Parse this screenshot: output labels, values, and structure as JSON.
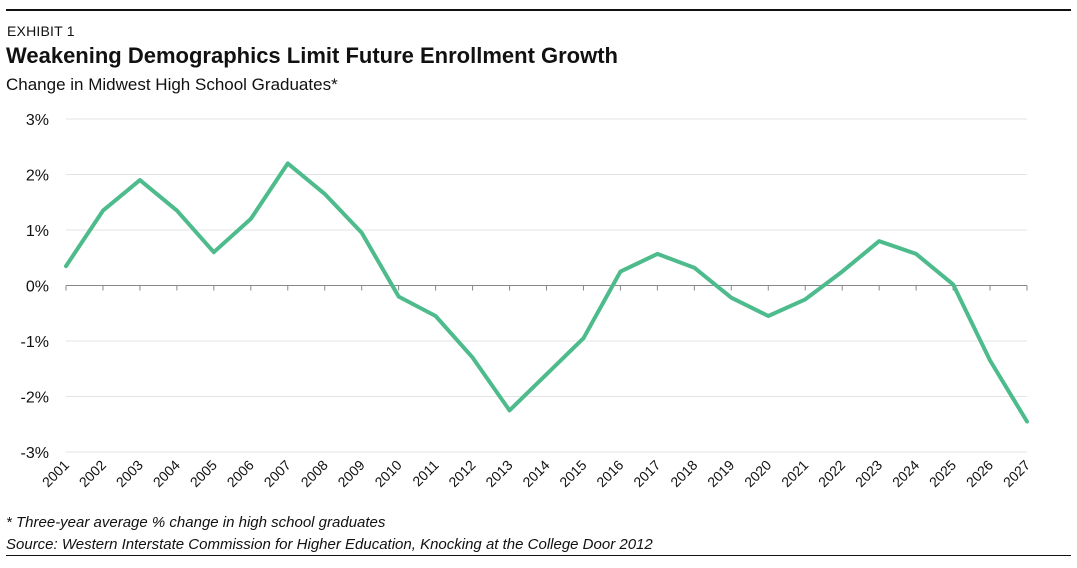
{
  "header": {
    "exhibit": "EXHIBIT 1",
    "title": "Weakening Demographics Limit Future Enrollment Growth",
    "subtitle": "Change in Midwest High School Graduates*"
  },
  "footer": {
    "footnote": "* Three-year average % change in high school graduates",
    "source": "Source: Western Interstate Commission for Higher Education, Knocking at the College Door 2012"
  },
  "colors": {
    "line": "#4dbb8c",
    "grid": "#e3e3e3",
    "axis": "#888888"
  },
  "chart_data": {
    "type": "line",
    "title": "Weakening Demographics Limit Future Enrollment Growth",
    "subtitle": "Change in Midwest High School Graduates*",
    "xlabel": "",
    "ylabel": "",
    "ylim": [
      -3,
      3
    ],
    "yticks": [
      3,
      2,
      1,
      0,
      -1,
      -2,
      -3
    ],
    "ytick_labels": [
      "3%",
      "2%",
      "1%",
      "0%",
      "-1%",
      "-2%",
      "-3%"
    ],
    "grid": "horizontal",
    "x": [
      "2001",
      "2002",
      "2003",
      "2004",
      "2005",
      "2006",
      "2007",
      "2008",
      "2009",
      "2010",
      "2011",
      "2012",
      "2013",
      "2014",
      "2015",
      "2016",
      "2017",
      "2018",
      "2019",
      "2020",
      "2021",
      "2022",
      "2023",
      "2024",
      "2025",
      "2026",
      "2027"
    ],
    "series": [
      {
        "values": [
          0.35,
          1.35,
          1.9,
          1.35,
          0.6,
          1.2,
          2.2,
          1.65,
          0.95,
          -0.2,
          -0.55,
          -1.3,
          -2.25,
          -1.6,
          -0.95,
          0.25,
          0.57,
          0.32,
          -0.22,
          -0.55,
          -0.25,
          0.25,
          0.8,
          0.57,
          0.02,
          -1.35,
          -2.45
        ]
      }
    ]
  }
}
